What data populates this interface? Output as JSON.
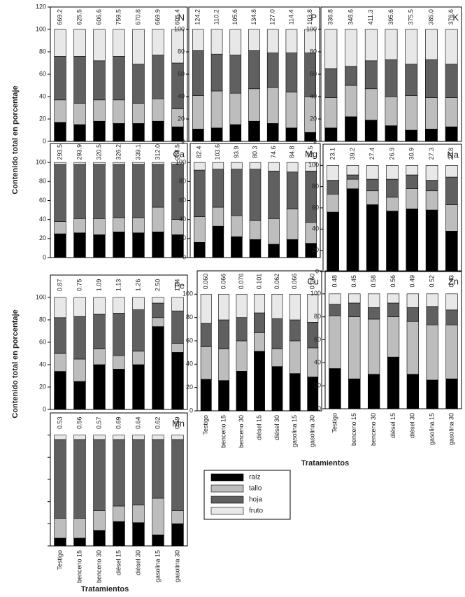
{
  "chart_data": [
    {
      "type": "bar",
      "stacked": true,
      "label": "N",
      "ylabel": "Contenido total en porcentaje",
      "categories": [
        null,
        null,
        null,
        null,
        null,
        null,
        null
      ],
      "annotations": [
        "669.2",
        "625.5",
        "606.6",
        "759.5",
        "670.8",
        "669.9",
        "605.4"
      ],
      "series": [
        {
          "values": [
            17,
            15,
            18,
            16,
            16,
            18,
            13
          ]
        },
        {
          "values": [
            20,
            19,
            19,
            21,
            18,
            20,
            16
          ]
        },
        {
          "values": [
            39,
            42,
            35,
            39,
            35,
            39,
            41
          ]
        },
        {
          "values": [
            24,
            24,
            28,
            24,
            31,
            23,
            30
          ]
        }
      ],
      "ylim": [
        0,
        120
      ],
      "yticks": [
        0,
        20,
        40,
        60,
        80,
        100,
        120
      ]
    },
    {
      "type": "bar",
      "stacked": true,
      "label": "P",
      "categories": [
        null,
        null,
        null,
        null,
        null,
        null,
        null
      ],
      "annotations": [
        "124.2",
        "110.2",
        "105.6",
        "134.8",
        "127.0",
        "114.4",
        "103.8"
      ],
      "series": [
        {
          "values": [
            11,
            12,
            15,
            18,
            16,
            12,
            8
          ]
        },
        {
          "values": [
            30,
            33,
            28,
            29,
            32,
            32,
            32
          ]
        },
        {
          "values": [
            40,
            33,
            34,
            34,
            31,
            35,
            39
          ]
        },
        {
          "values": [
            19,
            22,
            23,
            19,
            21,
            21,
            21
          ]
        }
      ],
      "ylim": [
        0,
        120
      ],
      "yticks": [
        0,
        20,
        40,
        60,
        80,
        100
      ]
    },
    {
      "type": "bar",
      "stacked": true,
      "label": "K",
      "categories": [
        null,
        null,
        null,
        null,
        null,
        null,
        null
      ],
      "annotations": [
        "336.8",
        "348.6",
        "411.3",
        "395.6",
        "375.5",
        "385.0",
        "376.6"
      ],
      "series": [
        {
          "values": [
            12,
            22,
            19,
            14,
            10,
            11,
            13
          ]
        },
        {
          "values": [
            27,
            28,
            28,
            26,
            31,
            28,
            26
          ]
        },
        {
          "values": [
            26,
            17,
            25,
            33,
            28,
            34,
            30
          ]
        },
        {
          "values": [
            35,
            33,
            28,
            27,
            31,
            27,
            31
          ]
        }
      ],
      "ylim": [
        0,
        120
      ],
      "yticks": [
        0,
        20,
        40,
        60,
        80,
        100
      ]
    },
    {
      "type": "bar",
      "stacked": true,
      "label": "Ca",
      "categories": [
        null,
        null,
        null,
        null,
        null,
        null,
        null
      ],
      "annotations": [
        "293.5",
        "293.9",
        "320.5",
        "326.2",
        "339.1",
        "312.0",
        "288.5"
      ],
      "series": [
        {
          "values": [
            25,
            26,
            24,
            27,
            26,
            27,
            24
          ]
        },
        {
          "values": [
            13,
            15,
            17,
            15,
            16,
            26,
            16
          ]
        },
        {
          "values": [
            60,
            57,
            57,
            56,
            56,
            45,
            58
          ]
        },
        {
          "values": [
            2,
            2,
            2,
            2,
            2,
            2,
            2
          ]
        }
      ],
      "ylim": [
        0,
        120
      ],
      "yticks": [
        0,
        20,
        40,
        60,
        80,
        100
      ]
    },
    {
      "type": "bar",
      "stacked": true,
      "label": "Mg",
      "categories": [
        null,
        null,
        null,
        null,
        null,
        null,
        null
      ],
      "annotations": [
        "82.4",
        "103.6",
        "93.9",
        "80.3",
        "74.6",
        "84.8",
        "75.5"
      ],
      "series": [
        {
          "values": [
            16,
            33,
            22,
            19,
            14,
            19,
            15
          ]
        },
        {
          "values": [
            27,
            20,
            22,
            20,
            27,
            32,
            22
          ]
        },
        {
          "values": [
            49,
            40,
            49,
            54,
            50,
            39,
            54
          ]
        },
        {
          "values": [
            8,
            7,
            7,
            7,
            9,
            10,
            9
          ]
        }
      ],
      "ylim": [
        0,
        120
      ],
      "yticks": [
        0,
        20,
        40,
        60,
        80,
        100
      ]
    },
    {
      "type": "bar",
      "stacked": true,
      "label": "Na",
      "categories": [
        null,
        null,
        null,
        null,
        null,
        null,
        null
      ],
      "annotations": [
        "23.1",
        "39.2",
        "27.4",
        "26.9",
        "30.9",
        "27.3",
        "20.8"
      ],
      "series": [
        {
          "values": [
            56,
            78,
            63,
            57,
            59,
            58,
            38
          ]
        },
        {
          "values": [
            17,
            9,
            13,
            13,
            19,
            18,
            25
          ]
        },
        {
          "values": [
            13,
            4,
            11,
            17,
            13,
            10,
            26
          ]
        },
        {
          "values": [
            14,
            9,
            13,
            13,
            9,
            14,
            11
          ]
        }
      ],
      "ylim": [
        0,
        120
      ],
      "yticks": [
        0,
        20,
        40,
        60,
        80,
        100
      ]
    },
    {
      "type": "bar",
      "stacked": true,
      "label": "Fe",
      "ylabel": "Contenido total en porcentaje",
      "categories": [
        null,
        null,
        null,
        null,
        null,
        null,
        null
      ],
      "annotations": [
        "0.87",
        "0.75",
        "1.09",
        "1.13",
        "1.26",
        "2.50",
        "1.24"
      ],
      "series": [
        {
          "values": [
            34,
            25,
            40,
            36,
            40,
            74,
            51
          ]
        },
        {
          "values": [
            16,
            20,
            14,
            12,
            12,
            8,
            8
          ]
        },
        {
          "values": [
            32,
            38,
            31,
            38,
            37,
            13,
            29
          ]
        },
        {
          "values": [
            18,
            17,
            15,
            14,
            11,
            5,
            12
          ]
        }
      ],
      "ylim": [
        0,
        120
      ],
      "yticks": [
        0,
        20,
        40,
        60,
        80,
        100
      ]
    },
    {
      "type": "bar",
      "stacked": true,
      "label": "Cu",
      "xlabel": "Tratamientos",
      "categories": [
        "Testigo",
        "benceno 15",
        "benceno 30",
        "diésel 15",
        "diésel 30",
        "gasolina 15",
        "gasolina 30"
      ],
      "annotations": [
        "0.060",
        "0.066",
        "0.076",
        "0.101",
        "0.062",
        "0.066",
        "0.060"
      ],
      "series": [
        {
          "values": [
            27,
            26,
            34,
            51,
            38,
            32,
            29
          ]
        },
        {
          "values": [
            28,
            27,
            26,
            16,
            15,
            28,
            25
          ]
        },
        {
          "values": [
            20,
            25,
            20,
            17,
            26,
            18,
            22
          ]
        },
        {
          "values": [
            25,
            22,
            20,
            16,
            21,
            22,
            24
          ]
        }
      ],
      "ylim": [
        0,
        120
      ],
      "yticks": [
        0,
        20,
        40,
        60,
        80,
        100
      ]
    },
    {
      "type": "bar",
      "stacked": true,
      "label": "Zn",
      "categories": [
        "Testigo",
        "benceno 15",
        "benceno 30",
        "diésel 15",
        "diésel 30",
        "gasolina 15",
        "gasolina 30"
      ],
      "annotations": [
        "0.48",
        "0.45",
        "0.58",
        "0.56",
        "0.49",
        "0.52",
        "0.43"
      ],
      "series": [
        {
          "values": [
            35,
            26,
            30,
            45,
            30,
            25,
            26
          ]
        },
        {
          "values": [
            46,
            54,
            48,
            35,
            46,
            48,
            47
          ]
        },
        {
          "values": [
            10,
            12,
            10,
            12,
            12,
            16,
            13
          ]
        },
        {
          "values": [
            9,
            8,
            12,
            8,
            12,
            11,
            14
          ]
        }
      ],
      "ylim": [
        0,
        120
      ],
      "yticks": [
        0,
        20,
        40,
        60,
        80,
        100
      ]
    },
    {
      "type": "bar",
      "stacked": true,
      "label": "Mn",
      "xlabel": "Tratamientos",
      "categories": [
        "Testigo",
        "benceno 15",
        "benceno 30",
        "diésel 15",
        "diésel 30",
        "gasolina 15",
        "gasolina 30"
      ],
      "annotations": [
        "0.53",
        "0.56",
        "0.57",
        "0.69",
        "0.64",
        "0.62",
        "0.59"
      ],
      "series": [
        {
          "values": [
            7,
            7,
            14,
            22,
            21,
            10,
            20
          ]
        },
        {
          "values": [
            18,
            18,
            18,
            14,
            16,
            33,
            12
          ]
        },
        {
          "values": [
            71,
            71,
            64,
            60,
            59,
            53,
            64
          ]
        },
        {
          "values": [
            4,
            4,
            4,
            4,
            4,
            4,
            4
          ]
        }
      ],
      "ylim": [
        0,
        120
      ],
      "yticks": [
        0,
        20,
        40,
        60,
        80,
        100
      ],
      "ytick_labels": false
    }
  ],
  "legend": {
    "entries": [
      {
        "name": "raíz",
        "color": "#000000"
      },
      {
        "name": "tallo",
        "color": "#bdbdbd"
      },
      {
        "name": "hoja",
        "color": "#606060"
      },
      {
        "name": "fruto",
        "color": "#e8e8e8"
      }
    ]
  }
}
